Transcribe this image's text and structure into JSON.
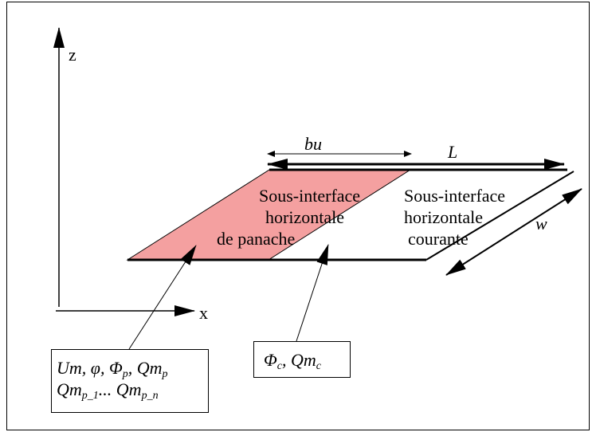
{
  "axes": {
    "z_label": "z",
    "x_label": "x"
  },
  "dimensions": {
    "bu": "bu",
    "L": "L",
    "w": "w"
  },
  "regions": {
    "plume": {
      "lines": [
        "Sous-interface",
        "horizontale",
        "de panache"
      ],
      "fill": "#f4a0a0"
    },
    "current": {
      "lines": [
        "Sous-interface",
        "horizontale",
        "courante"
      ],
      "fill": "#ffffff"
    }
  },
  "boxes": {
    "plume_vars": {
      "line1": [
        {
          "t": "Um, φ, Φ"
        },
        {
          "sub": "p"
        },
        {
          "t": ", Qm"
        },
        {
          "sub": "p"
        }
      ],
      "line2": [
        {
          "t": "Qm"
        },
        {
          "sub": "p_1"
        },
        {
          "t": "... Qm"
        },
        {
          "sub": "p_n"
        }
      ]
    },
    "current_vars": {
      "line1": [
        {
          "t": "Φ"
        },
        {
          "sub": "c"
        },
        {
          "t": ", Qm"
        },
        {
          "sub": "c"
        }
      ]
    }
  }
}
